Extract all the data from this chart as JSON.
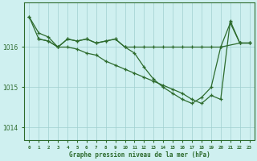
{
  "background_color": "#cff0f0",
  "grid_color": "#a0d0d0",
  "line_color": "#2d6b2d",
  "title": "Graphe pression niveau de la mer (hPa)",
  "x_labels": [
    "0",
    "1",
    "2",
    "3",
    "4",
    "5",
    "6",
    "7",
    "8",
    "9",
    "10",
    "11",
    "12",
    "13",
    "14",
    "15",
    "16",
    "17",
    "18",
    "19",
    "20",
    "21",
    "22",
    "23"
  ],
  "yticks": [
    1014,
    1015,
    1016
  ],
  "ylim": [
    1013.7,
    1017.1
  ],
  "xlim": [
    -0.5,
    23.5
  ],
  "line1_x": [
    0,
    1,
    2,
    3,
    4,
    5,
    6,
    7,
    8,
    9,
    10,
    11,
    12,
    13,
    14,
    15,
    16,
    17,
    18,
    19,
    20,
    21,
    22,
    23
  ],
  "line1_y": [
    1016.75,
    1016.2,
    1016.15,
    1016.0,
    1016.2,
    1016.15,
    1016.2,
    1016.1,
    1016.15,
    1016.2,
    1016.0,
    1015.85,
    1015.5,
    1015.2,
    1015.0,
    1014.85,
    1014.7,
    1014.6,
    1014.75,
    1015.0,
    1016.0,
    1016.6,
    1016.1,
    1016.1
  ],
  "line2_x": [
    1,
    2,
    3,
    4,
    5,
    6,
    7,
    8,
    9,
    10,
    11,
    12,
    13,
    14,
    15,
    16,
    17,
    18,
    19,
    20,
    22,
    23
  ],
  "line2_y": [
    1016.2,
    1016.15,
    1016.0,
    1016.2,
    1016.15,
    1016.2,
    1016.1,
    1016.15,
    1016.2,
    1016.0,
    1016.0,
    1016.0,
    1016.0,
    1016.0,
    1016.0,
    1016.0,
    1016.0,
    1016.0,
    1016.0,
    1016.0,
    1016.1,
    1016.1
  ],
  "line3_x": [
    0,
    1,
    2,
    3,
    4,
    5,
    6,
    7,
    8,
    9,
    10,
    11,
    12,
    13,
    14,
    15,
    16,
    17,
    18,
    19,
    20,
    21,
    22,
    23
  ],
  "line3_y": [
    1016.75,
    1016.35,
    1016.25,
    1016.0,
    1016.0,
    1015.95,
    1015.85,
    1015.8,
    1015.65,
    1015.55,
    1015.45,
    1015.35,
    1015.25,
    1015.15,
    1015.05,
    1014.95,
    1014.85,
    1014.7,
    1014.6,
    1014.8,
    1014.7,
    1016.65,
    1016.1,
    1016.1
  ]
}
